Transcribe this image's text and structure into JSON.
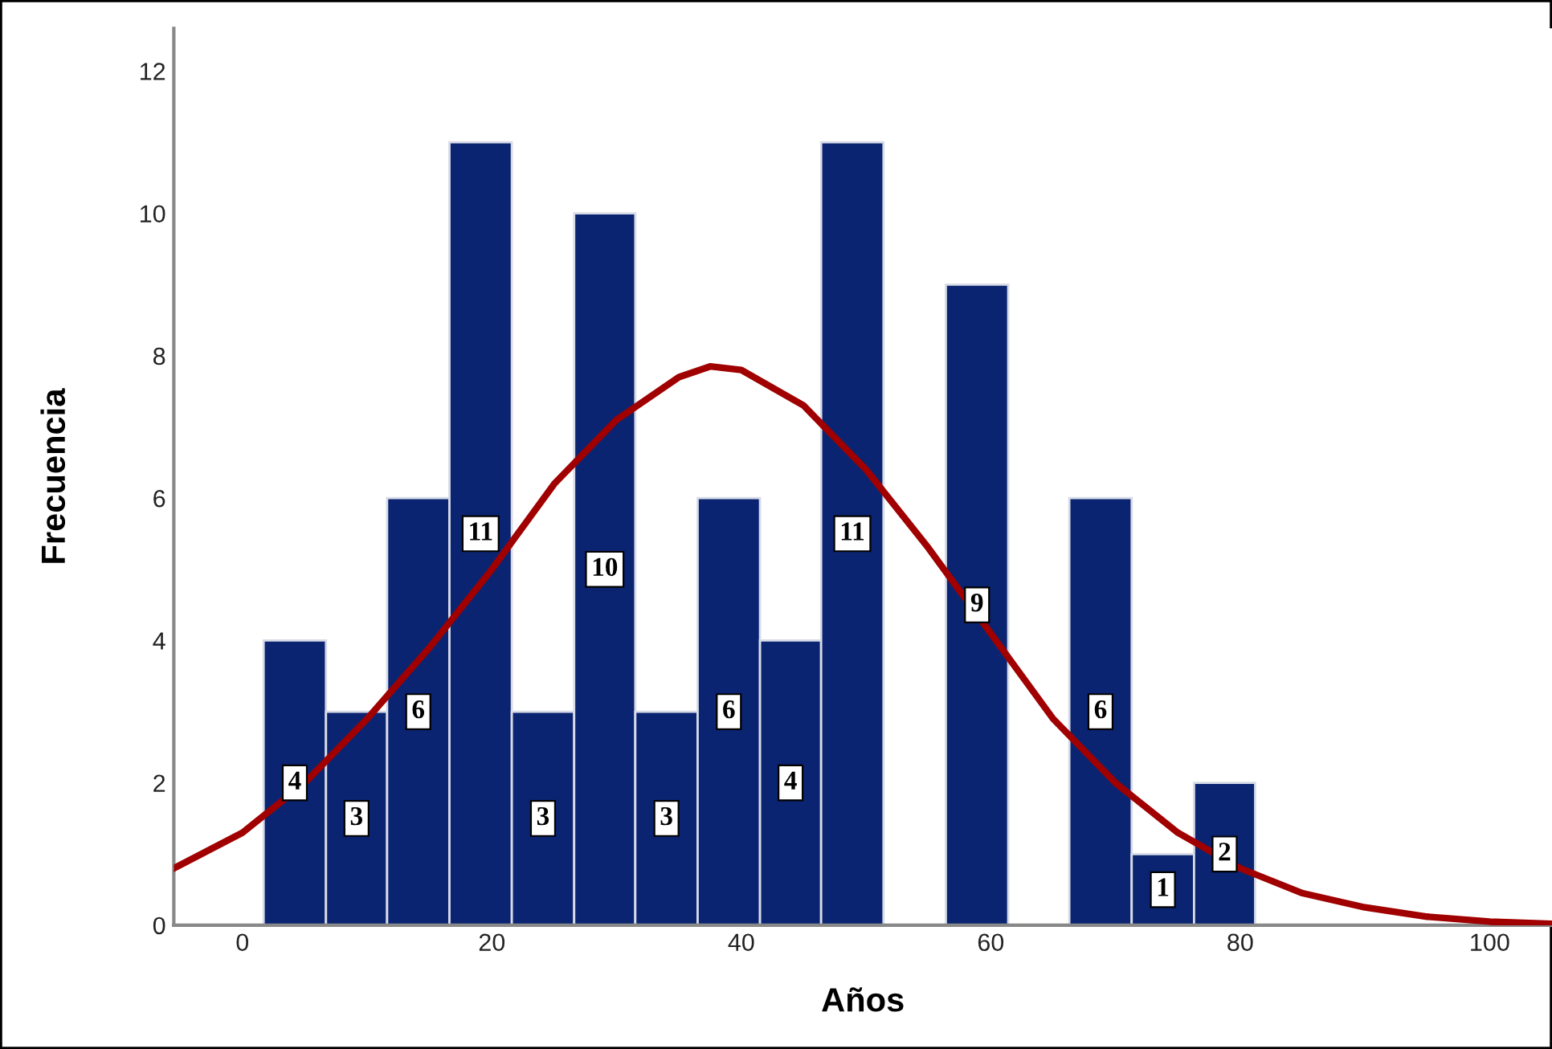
{
  "chart_data": {
    "type": "histogram",
    "xlabel": "Años",
    "ylabel": "Frecuencia",
    "bins": [
      1.7,
      6.7,
      11.6,
      16.6,
      21.6,
      26.6,
      31.5,
      36.5,
      41.5,
      46.4,
      51.4,
      56.4,
      61.4,
      66.3,
      71.3,
      76.3,
      81.2
    ],
    "values": [
      4,
      3,
      6,
      11,
      3,
      10,
      3,
      6,
      4,
      11,
      0,
      9,
      0,
      6,
      1,
      2
    ],
    "value_labels": [
      "4",
      "3",
      "6",
      "11",
      "3",
      "10",
      "3",
      "6",
      "4",
      "11",
      null,
      "9",
      null,
      "6",
      "1",
      "2"
    ],
    "color": "#0b2471",
    "series": [
      {
        "type": "line",
        "color": "#a00000",
        "x": [
          -5.5,
          0,
          5,
          10,
          15,
          20,
          25,
          30,
          35,
          37.5,
          40,
          45,
          50,
          55,
          60,
          65,
          70,
          75,
          80,
          85,
          90,
          95,
          100,
          105
        ],
        "values": [
          0.8,
          1.3,
          2.0,
          2.9,
          3.9,
          5.0,
          6.2,
          7.1,
          7.7,
          7.85,
          7.8,
          7.3,
          6.4,
          5.3,
          4.1,
          2.9,
          2.0,
          1.3,
          0.8,
          0.45,
          0.25,
          0.12,
          0.05,
          0.02
        ]
      }
    ],
    "xlim": [
      -5.5,
      105
    ],
    "ylim": [
      0,
      12.6
    ],
    "xticks": [
      0,
      20,
      40,
      60,
      80,
      100
    ],
    "yticks": [
      0,
      2,
      4,
      6,
      8,
      10,
      12
    ],
    "grid": false,
    "legend": false
  }
}
